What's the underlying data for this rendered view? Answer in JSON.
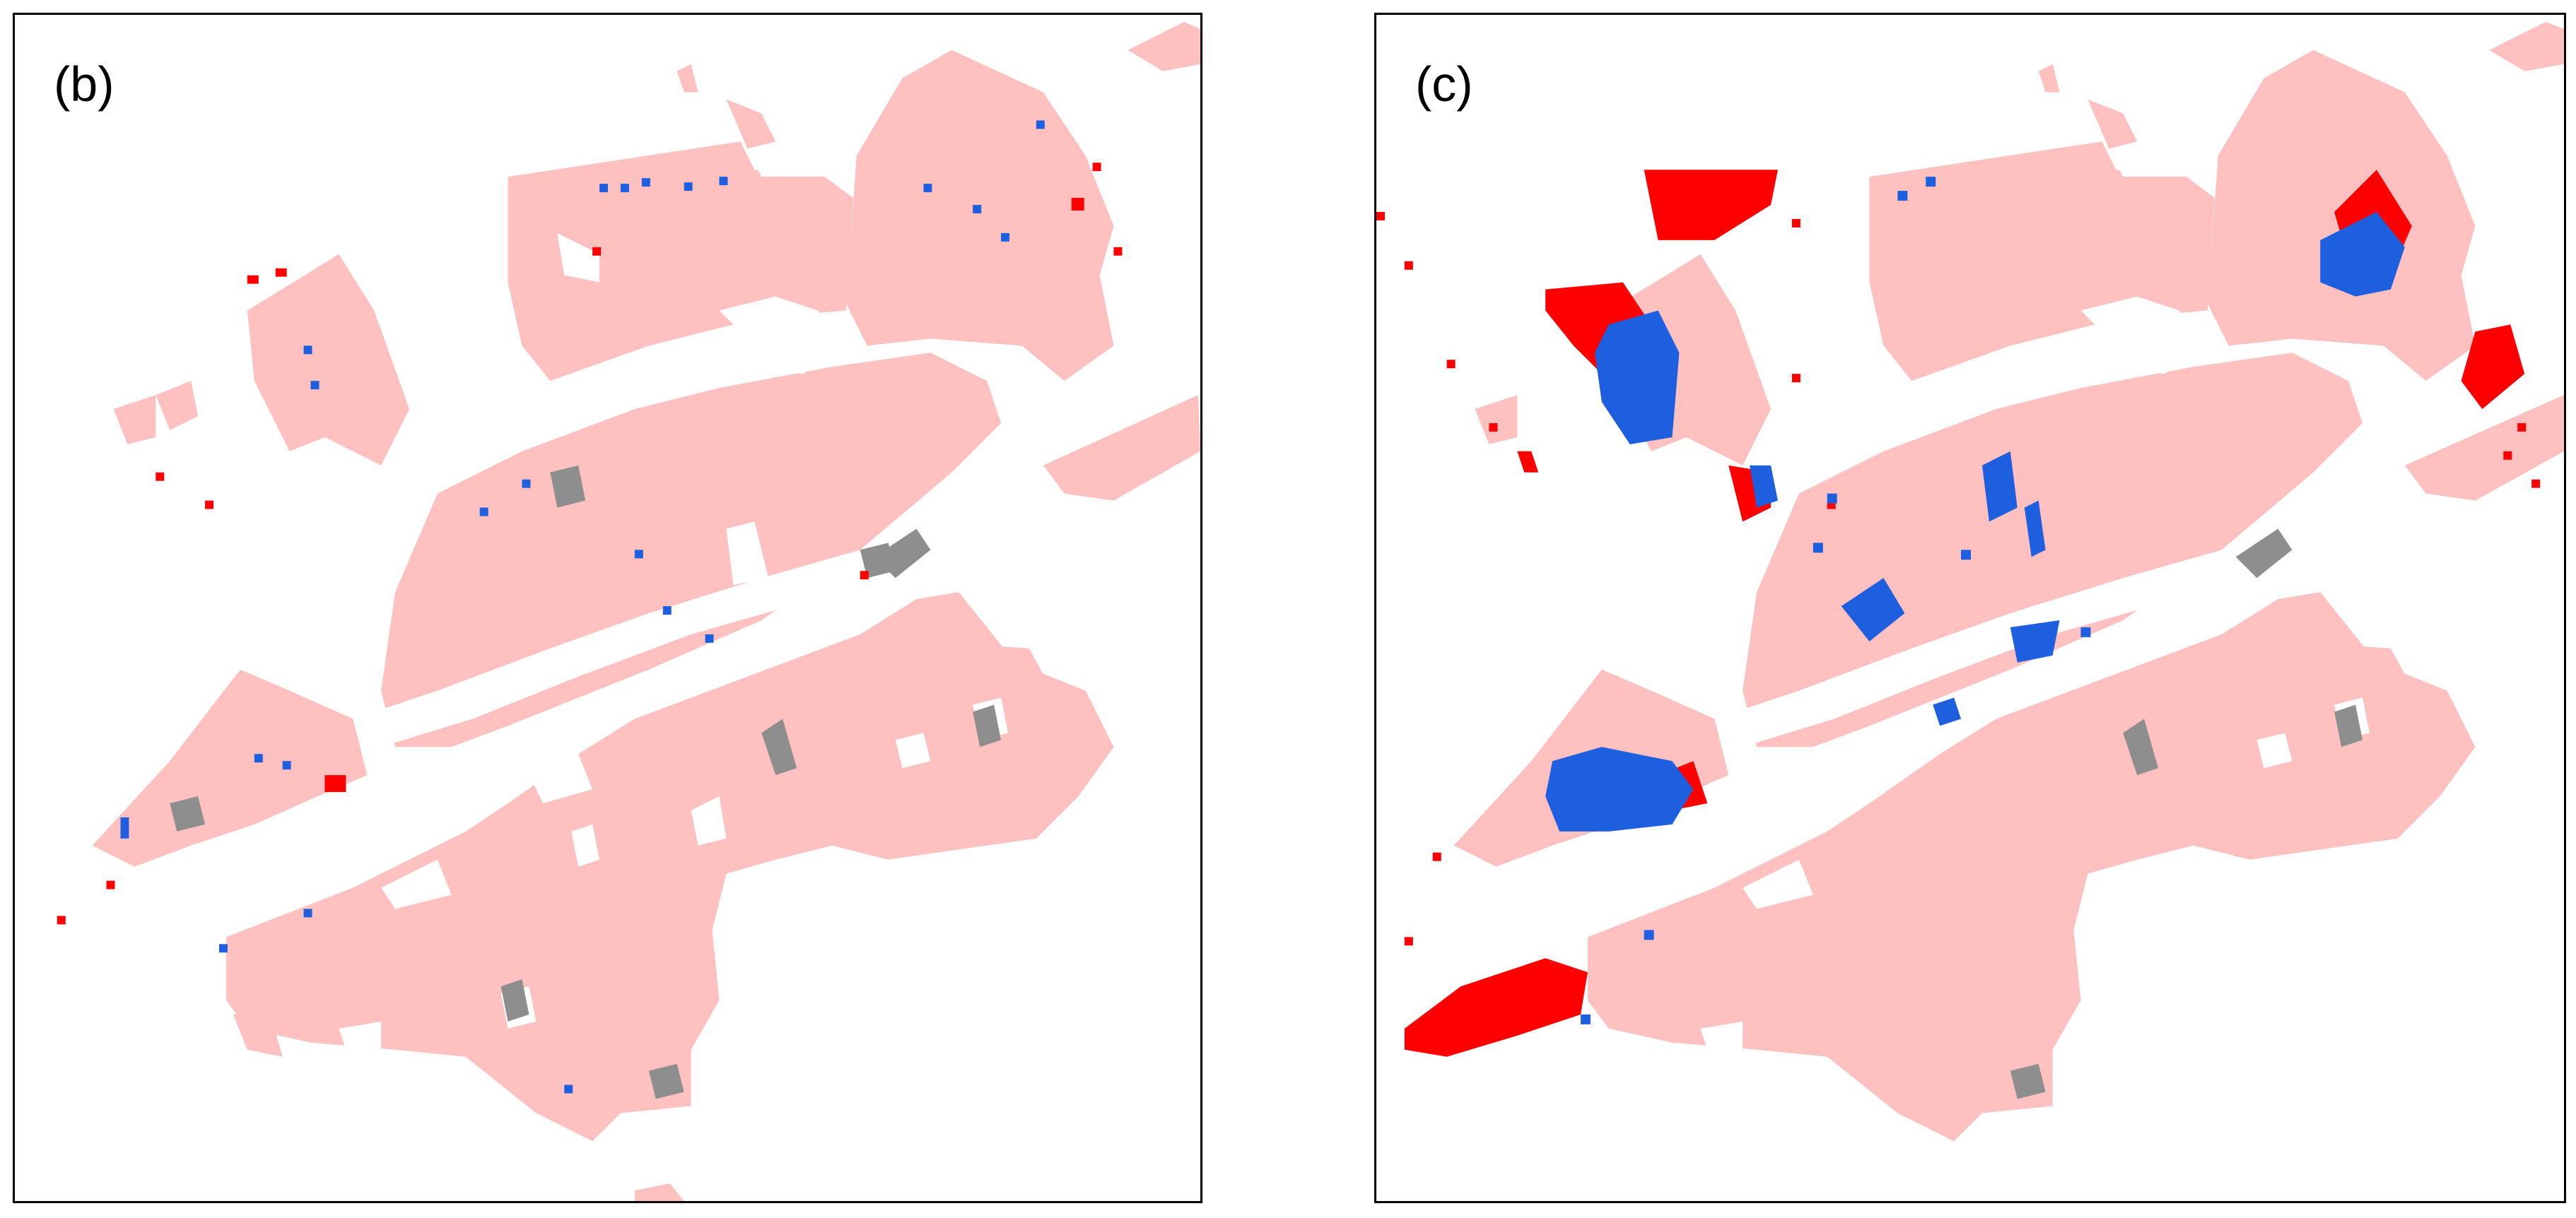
{
  "panels": [
    {
      "id": "b",
      "label": "(b)"
    },
    {
      "id": "c",
      "label": "(c)"
    }
  ],
  "colors": {
    "urban_area": "#ffc0c0",
    "overlay_gray": "#8e8e8e",
    "overlay_red": "#ff0000",
    "overlay_blue": "#1e5fe0"
  }
}
